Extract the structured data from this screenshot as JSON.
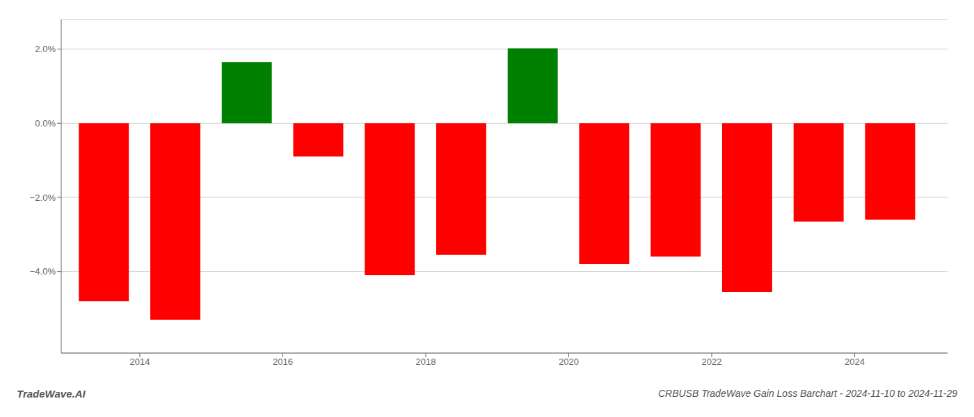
{
  "chart_data": {
    "type": "bar",
    "title": "CRBUSB TradeWave Gain Loss Barchart - 2024-11-10 to 2024-11-29",
    "annotations": [
      "TradeWave.AI"
    ],
    "x": [
      2013,
      2014,
      2015,
      2016,
      2017,
      2018,
      2019,
      2020,
      2021,
      2022,
      2023,
      2024
    ],
    "values": [
      -4.8,
      -5.3,
      1.65,
      -0.9,
      -4.1,
      -3.55,
      2.02,
      -3.8,
      -3.6,
      -4.55,
      -2.65,
      -2.6
    ],
    "colors": [
      "#ff0000",
      "#ff0000",
      "#008000",
      "#ff0000",
      "#ff0000",
      "#ff0000",
      "#008000",
      "#ff0000",
      "#ff0000",
      "#ff0000",
      "#ff0000",
      "#ff0000"
    ],
    "xlim": [
      2012.4,
      2024.8
    ],
    "xticks": [
      {
        "value": 2013.5,
        "label": "2014"
      },
      {
        "value": 2015.5,
        "label": "2016"
      },
      {
        "value": 2017.5,
        "label": "2018"
      },
      {
        "value": 2019.5,
        "label": "2020"
      },
      {
        "value": 2021.5,
        "label": "2022"
      },
      {
        "value": 2023.5,
        "label": "2024"
      }
    ],
    "ylim": [
      -6.2,
      2.8
    ],
    "yticks": [
      {
        "value": -4.0,
        "label": "−4.0%"
      },
      {
        "value": -2.0,
        "label": "−2.0%"
      },
      {
        "value": 0.0,
        "label": "0.0%"
      },
      {
        "value": 2.0,
        "label": "2.0%"
      }
    ],
    "grid": "y"
  }
}
